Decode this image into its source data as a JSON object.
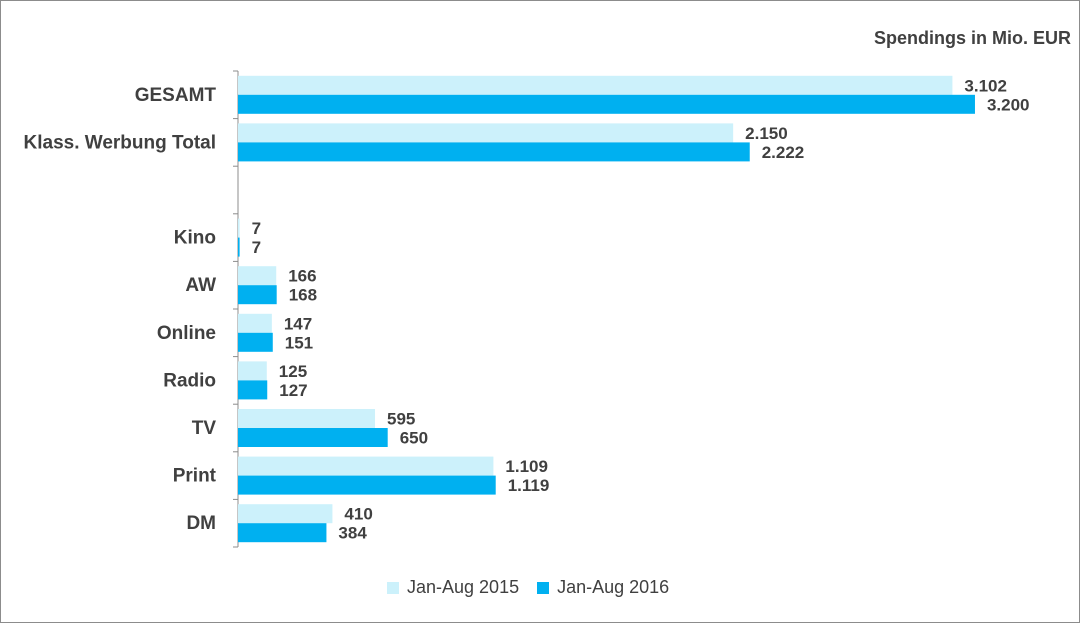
{
  "chart_data": {
    "type": "bar",
    "orientation": "horizontal",
    "unit_label": "Spendings in Mio. EUR",
    "categories": [
      "GESAMT",
      "Klass. Werbung Total",
      "",
      "Kino",
      "AW",
      "Online",
      "Radio",
      "TV",
      "Print",
      "DM"
    ],
    "series": [
      {
        "name": "Jan-Aug 2015",
        "color": "#ccf1fb",
        "values": [
          3102,
          2150,
          null,
          7,
          166,
          147,
          125,
          595,
          1109,
          410
        ],
        "labels": [
          "3.102",
          "2.150",
          "",
          "7",
          "166",
          "147",
          "125",
          "595",
          "1.109",
          "410"
        ]
      },
      {
        "name": "Jan-Aug 2016",
        "color": "#00b0f0",
        "values": [
          3200,
          2222,
          null,
          7,
          168,
          151,
          127,
          650,
          1119,
          384
        ],
        "labels": [
          "3.200",
          "2.222",
          "",
          "7",
          "168",
          "151",
          "127",
          "650",
          "1.119",
          "384"
        ]
      }
    ],
    "xlim": [
      0,
      3300
    ],
    "grid": false,
    "legend_position": "bottom"
  }
}
